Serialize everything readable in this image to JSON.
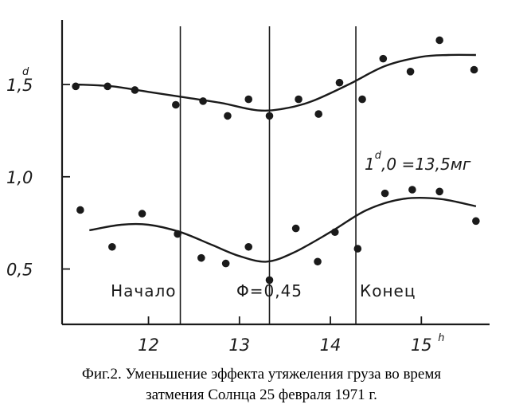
{
  "chart_data": {
    "type": "scatter",
    "xlim": [
      11.05,
      15.75
    ],
    "ylim": [
      0.2,
      1.85
    ],
    "x_ticks": [
      "12",
      "13",
      "14",
      "15"
    ],
    "x_unit": "h",
    "y_ticks": [
      "1,5",
      "1,0",
      "0,5"
    ],
    "y_unit": "d",
    "events": [
      {
        "label": "Начало",
        "x": 12.35
      },
      {
        "label": "Φ=0,45",
        "x": 13.33
      },
      {
        "label": "Конец",
        "x": 14.28
      }
    ],
    "annotation": {
      "prefix": "1",
      "sup": "d",
      "text": ",0 =13,5мг"
    },
    "series": [
      {
        "points": [
          [
            11.2,
            1.49
          ],
          [
            11.55,
            1.49
          ],
          [
            11.85,
            1.47
          ],
          [
            12.3,
            1.39
          ],
          [
            12.6,
            1.41
          ],
          [
            12.87,
            1.33
          ],
          [
            13.1,
            1.42
          ],
          [
            13.33,
            1.33
          ],
          [
            13.65,
            1.42
          ],
          [
            13.87,
            1.34
          ],
          [
            14.1,
            1.51
          ],
          [
            14.35,
            1.42
          ],
          [
            14.58,
            1.64
          ],
          [
            14.88,
            1.57
          ],
          [
            15.2,
            1.74
          ],
          [
            15.58,
            1.58
          ]
        ],
        "fit": [
          [
            11.2,
            1.5
          ],
          [
            11.6,
            1.49
          ],
          [
            12.0,
            1.46
          ],
          [
            12.4,
            1.43
          ],
          [
            12.8,
            1.4
          ],
          [
            13.2,
            1.36
          ],
          [
            13.5,
            1.37
          ],
          [
            13.8,
            1.41
          ],
          [
            14.2,
            1.5
          ],
          [
            14.6,
            1.6
          ],
          [
            15.0,
            1.65
          ],
          [
            15.3,
            1.66
          ],
          [
            15.6,
            1.66
          ]
        ]
      },
      {
        "points": [
          [
            11.25,
            0.82
          ],
          [
            11.6,
            0.62
          ],
          [
            11.93,
            0.8
          ],
          [
            12.32,
            0.69
          ],
          [
            12.58,
            0.56
          ],
          [
            12.85,
            0.53
          ],
          [
            13.1,
            0.62
          ],
          [
            13.33,
            0.44
          ],
          [
            13.62,
            0.72
          ],
          [
            13.86,
            0.54
          ],
          [
            14.05,
            0.7
          ],
          [
            14.3,
            0.61
          ],
          [
            14.6,
            0.91
          ],
          [
            14.9,
            0.93
          ],
          [
            15.2,
            0.92
          ],
          [
            15.6,
            0.76
          ]
        ],
        "fit": [
          [
            11.35,
            0.71
          ],
          [
            11.7,
            0.74
          ],
          [
            12.0,
            0.74
          ],
          [
            12.35,
            0.7
          ],
          [
            12.7,
            0.63
          ],
          [
            13.0,
            0.57
          ],
          [
            13.3,
            0.54
          ],
          [
            13.6,
            0.59
          ],
          [
            14.0,
            0.7
          ],
          [
            14.4,
            0.82
          ],
          [
            14.8,
            0.88
          ],
          [
            15.2,
            0.88
          ],
          [
            15.6,
            0.84
          ]
        ]
      }
    ]
  },
  "caption": {
    "line1": "Фиг.2. Уменьшение эффекта утяжеления груза во время",
    "line2": "затмения Солнца 25 февраля 1971 г."
  }
}
